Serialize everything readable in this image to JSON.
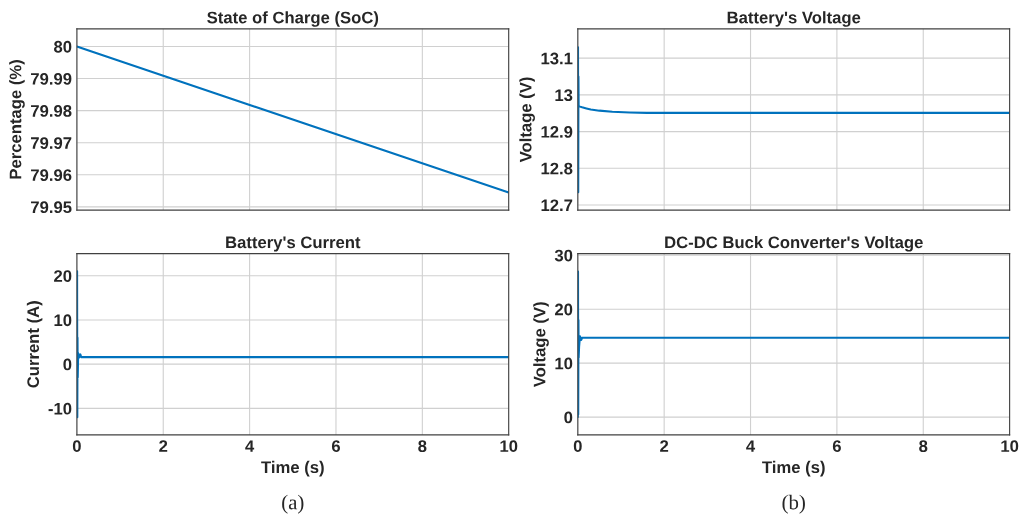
{
  "chart_data": [
    {
      "type": "line",
      "title": "State of Charge (SoC)",
      "ylabel": "Percentage (%)",
      "x": [
        0,
        10
      ],
      "series": [
        {
          "color": "#0072bd",
          "values": [
            80,
            79.9545
          ]
        }
      ],
      "xlim": [
        0,
        10
      ],
      "xticks": [
        0,
        2,
        4,
        6,
        8,
        10
      ],
      "ylim": [
        79.949,
        80.0055
      ],
      "yticks": [
        79.95,
        79.96,
        79.97,
        79.98,
        79.99,
        80
      ],
      "grid": true,
      "tick_labels": "y"
    },
    {
      "type": "line",
      "title": "Battery's Voltage",
      "ylabel": "Voltage (V)",
      "x": [
        0,
        0.005,
        0.01,
        0.015,
        0.02,
        0.05,
        0.1,
        0.2,
        0.3,
        0.5,
        0.8,
        1.2,
        1.6,
        2,
        4,
        6,
        8,
        10
      ],
      "series": [
        {
          "color": "#0072bd",
          "values": [
            12.95,
            13.13,
            12.735,
            13.05,
            12.97,
            12.968,
            12.966,
            12.963,
            12.96,
            12.957,
            12.954,
            12.952,
            12.951,
            12.951,
            12.951,
            12.951,
            12.951,
            12.951
          ]
        }
      ],
      "xlim": [
        0,
        10
      ],
      "xticks": [
        0,
        2,
        4,
        6,
        8,
        10
      ],
      "ylim": [
        12.686,
        13.18
      ],
      "yticks": [
        12.7,
        12.8,
        12.9,
        13,
        13.1
      ],
      "grid": true,
      "tick_labels": "y"
    },
    {
      "type": "line",
      "title": "Battery's Current",
      "xlabel": "Time (s)",
      "ylabel": "Current (A)",
      "annotations": [
        "(a)"
      ],
      "x": [
        0,
        0.005,
        0.01,
        0.015,
        0.02,
        0.03,
        0.05,
        0.08,
        0.1,
        1,
        2,
        4,
        6,
        8,
        10
      ],
      "series": [
        {
          "color": "#0072bd",
          "values": [
            0,
            21,
            -12,
            6,
            -3,
            2.5,
            1.5,
            2.2,
            1.6,
            1.6,
            1.6,
            1.6,
            1.6,
            1.6,
            1.6
          ]
        }
      ],
      "xlim": [
        0,
        10
      ],
      "xticks": [
        0,
        2,
        4,
        6,
        8,
        10
      ],
      "ylim": [
        -16,
        25
      ],
      "yticks": [
        -10,
        0,
        10,
        20
      ],
      "grid": true
    },
    {
      "type": "line",
      "title": "DC-DC Buck Converter's Voltage",
      "xlabel": "Time (s)",
      "ylabel": "Voltage (V)",
      "annotations": [
        "(b)"
      ],
      "x": [
        0,
        0.005,
        0.01,
        0.015,
        0.02,
        0.03,
        0.05,
        0.08,
        0.1,
        1,
        2,
        4,
        6,
        8,
        10
      ],
      "series": [
        {
          "color": "#0072bd",
          "values": [
            0,
            27,
            0.5,
            18,
            11,
            13,
            15,
            14.3,
            14.7,
            14.7,
            14.7,
            14.7,
            14.7,
            14.7,
            14.7
          ]
        }
      ],
      "xlim": [
        0,
        10
      ],
      "xticks": [
        0,
        2,
        4,
        6,
        8,
        10
      ],
      "ylim": [
        -3.3,
        30.3
      ],
      "yticks": [
        0,
        10,
        20,
        30
      ],
      "grid": true
    }
  ]
}
